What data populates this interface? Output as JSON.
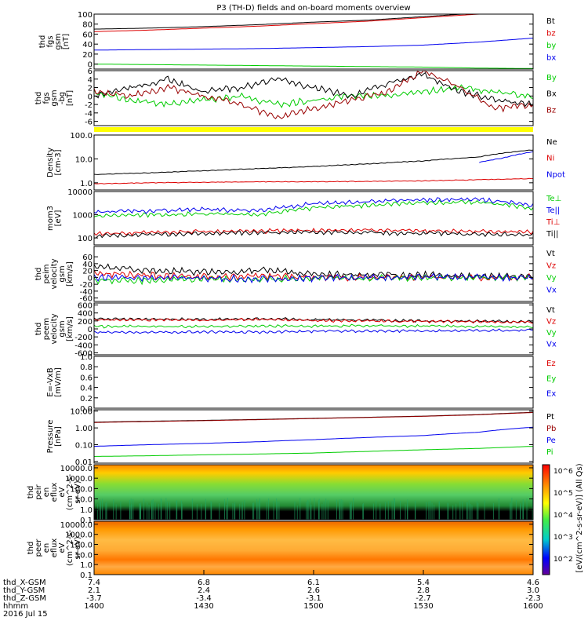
{
  "title": "P3 (TH-D) fields and on-board moments overview",
  "colors": {
    "black": "#000000",
    "red": "#dd0000",
    "green": "#00cc00",
    "blue": "#0000ee",
    "darkred": "#990000",
    "yellow": "#ffff00"
  },
  "chart_data": [
    {
      "id": "fgs",
      "type": "line",
      "ylabel": [
        "thd",
        "fgs",
        "gsm",
        "[nT]"
      ],
      "ylim": [
        -10,
        100
      ],
      "ticks": [
        "100",
        "80",
        "60",
        "40",
        "20",
        "0"
      ],
      "tickvals": [
        100,
        80,
        60,
        40,
        20,
        0
      ],
      "series": [
        {
          "name": "Bt",
          "color": "#000000",
          "x": [
            1400,
            1415,
            1430,
            1445,
            1500,
            1515,
            1530,
            1545,
            1600
          ],
          "values": [
            70,
            72,
            75,
            79,
            84,
            88,
            95,
            102,
            110
          ]
        },
        {
          "name": "bz",
          "color": "#dd0000",
          "x": [
            1400,
            1415,
            1430,
            1445,
            1500,
            1515,
            1530,
            1545,
            1600
          ],
          "values": [
            65,
            68,
            72,
            76,
            81,
            86,
            93,
            100,
            106
          ]
        },
        {
          "name": "by",
          "color": "#00cc00",
          "x": [
            1400,
            1415,
            1430,
            1445,
            1500,
            1515,
            1530,
            1545,
            1600
          ],
          "values": [
            0,
            -1,
            -2,
            -3,
            -4,
            -5,
            -6,
            -8,
            -9
          ]
        },
        {
          "name": "bx",
          "color": "#0000ee",
          "x": [
            1400,
            1415,
            1430,
            1445,
            1500,
            1515,
            1530,
            1545,
            1600
          ],
          "values": [
            28,
            29,
            30,
            31,
            33,
            35,
            38,
            44,
            52
          ]
        }
      ]
    },
    {
      "id": "fgs_dsl",
      "type": "line",
      "ylabel": [
        "thd",
        "fgs",
        "gsm",
        "-bg",
        "[nT]"
      ],
      "ylim": [
        -7,
        6
      ],
      "ticks": [
        "6",
        "4",
        "2",
        "0",
        "-2",
        "-4",
        "-6"
      ],
      "tickvals": [
        6,
        4,
        2,
        0,
        -2,
        -4,
        -6
      ],
      "series": [
        {
          "name": "By",
          "color": "#00cc00",
          "x": [
            1400,
            1410,
            1420,
            1430,
            1440,
            1450,
            1500,
            1510,
            1520,
            1530,
            1540,
            1550,
            1600
          ],
          "values": [
            1,
            -1,
            -2,
            -1,
            0,
            -2,
            -1,
            0,
            0,
            1,
            2,
            1,
            0
          ]
        },
        {
          "name": "Bx",
          "color": "#000000",
          "x": [
            1400,
            1410,
            1420,
            1430,
            1440,
            1450,
            1500,
            1510,
            1520,
            1530,
            1540,
            1550,
            1600
          ],
          "values": [
            0,
            2,
            4,
            1,
            2,
            4,
            2,
            0,
            3,
            5,
            1,
            -1,
            -2
          ]
        },
        {
          "name": "Bz",
          "color": "#990000",
          "x": [
            1400,
            1410,
            1420,
            1430,
            1440,
            1450,
            1500,
            1510,
            1520,
            1530,
            1540,
            1550,
            1600
          ],
          "values": [
            1,
            0,
            2,
            0,
            -2,
            -5,
            -3,
            -1,
            1,
            6,
            2,
            -3,
            -2
          ]
        }
      ]
    },
    {
      "id": "density",
      "type": "line",
      "log": true,
      "ylabel": [
        "Density",
        "[cm-3]"
      ],
      "ylim": [
        0.5,
        100
      ],
      "ticks": [
        "100.0",
        "10.0",
        "1.0"
      ],
      "tickvals": [
        100,
        10,
        1
      ],
      "series": [
        {
          "name": "Ne",
          "color": "#000000",
          "x": [
            1400,
            1415,
            1430,
            1445,
            1500,
            1515,
            1530,
            1545,
            1600
          ],
          "values": [
            2.2,
            2.6,
            3.2,
            3.9,
            4.8,
            6.2,
            8.2,
            12,
            24
          ]
        },
        {
          "name": "Ni",
          "color": "#dd0000",
          "x": [
            1400,
            1415,
            1430,
            1445,
            1500,
            1515,
            1530,
            1545,
            1600
          ],
          "values": [
            0.9,
            1.0,
            1.05,
            1.1,
            1.1,
            1.15,
            1.2,
            1.35,
            1.5
          ]
        },
        {
          "name": "Npot",
          "color": "#0000ee",
          "x": [
            1545,
            1552,
            1600
          ],
          "values": [
            7,
            11,
            20
          ]
        }
      ]
    },
    {
      "id": "temp",
      "type": "line",
      "log": true,
      "ylabel": [
        "mom3",
        "[eV]"
      ],
      "ylim": [
        50,
        10000
      ],
      "ticks": [
        "10000",
        "1000",
        "100"
      ],
      "tickvals": [
        10000,
        1000,
        100
      ],
      "series": [
        {
          "name": "Te⊥",
          "color": "#00cc00",
          "x": [
            1400,
            1415,
            1430,
            1445,
            1500,
            1515,
            1530,
            1545,
            1600
          ],
          "values": [
            900,
            1000,
            1100,
            1000,
            2000,
            2600,
            3400,
            3500,
            1900
          ]
        },
        {
          "name": "Te||",
          "color": "#0000ee",
          "x": [
            1400,
            1415,
            1430,
            1445,
            1500,
            1515,
            1530,
            1545,
            1600
          ],
          "values": [
            1300,
            1500,
            1700,
            1500,
            3000,
            3700,
            4500,
            4600,
            2600
          ]
        },
        {
          "name": "Ti⊥",
          "color": "#dd0000",
          "x": [
            1400,
            1415,
            1430,
            1445,
            1500,
            1515,
            1530,
            1545,
            1600
          ],
          "values": [
            150,
            170,
            190,
            200,
            210,
            220,
            200,
            190,
            180
          ]
        },
        {
          "name": "Ti||",
          "color": "#000000",
          "x": [
            1400,
            1415,
            1430,
            1445,
            1500,
            1515,
            1530,
            1545,
            1600
          ],
          "values": [
            120,
            140,
            160,
            170,
            180,
            170,
            160,
            150,
            140
          ]
        }
      ]
    },
    {
      "id": "vi",
      "type": "line",
      "ylabel": [
        "thd",
        "peim",
        "velocity",
        "gsm",
        "[km/s]"
      ],
      "ylim": [
        -70,
        90
      ],
      "ticks": [
        "60",
        "40",
        "20",
        "0",
        "-20",
        "-40",
        "-60"
      ],
      "tickvals": [
        60,
        40,
        20,
        0,
        -20,
        -40,
        -60
      ],
      "series": [
        {
          "name": "Vt",
          "color": "#000000",
          "x": [
            1400,
            1415,
            1430,
            1445,
            1500,
            1515,
            1530,
            1545,
            1600
          ],
          "values": [
            30,
            20,
            15,
            20,
            10,
            8,
            6,
            4,
            3
          ]
        },
        {
          "name": "Vz",
          "color": "#dd0000",
          "x": [
            1400,
            1415,
            1430,
            1445,
            1500,
            1515,
            1530,
            1545,
            1600
          ],
          "values": [
            10,
            5,
            2,
            5,
            0,
            0,
            0,
            0,
            0
          ]
        },
        {
          "name": "Vy",
          "color": "#00cc00",
          "x": [
            1400,
            1415,
            1430,
            1445,
            1500,
            1515,
            1530,
            1545,
            1600
          ],
          "values": [
            -10,
            -8,
            -6,
            -5,
            -3,
            -2,
            -1,
            -1,
            -1
          ]
        },
        {
          "name": "Vx",
          "color": "#0000ee",
          "x": [
            1400,
            1415,
            1430,
            1445,
            1500,
            1515,
            1530,
            1545,
            1600
          ],
          "values": [
            0,
            -2,
            -3,
            -5,
            -2,
            -1,
            0,
            0,
            0
          ]
        }
      ]
    },
    {
      "id": "ve",
      "type": "line",
      "ylabel": [
        "thd",
        "peem",
        "velocity",
        "gsm",
        "[km/s]"
      ],
      "ylim": [
        -650,
        650
      ],
      "ticks": [
        "600",
        "400",
        "200",
        "0",
        "-200",
        "-400",
        "-600"
      ],
      "tickvals": [
        600,
        400,
        200,
        0,
        -200,
        -400,
        -600
      ],
      "series": [
        {
          "name": "Vt",
          "color": "#000000",
          "x": [
            1400,
            1415,
            1430,
            1445,
            1500,
            1515,
            1530,
            1545,
            1600
          ],
          "values": [
            250,
            250,
            240,
            260,
            230,
            220,
            200,
            190,
            180
          ]
        },
        {
          "name": "Vz",
          "color": "#dd0000",
          "x": [
            1400,
            1415,
            1430,
            1445,
            1500,
            1515,
            1530,
            1545,
            1600
          ],
          "values": [
            230,
            230,
            220,
            240,
            210,
            200,
            190,
            180,
            170
          ]
        },
        {
          "name": "Vy",
          "color": "#00cc00",
          "x": [
            1400,
            1415,
            1430,
            1445,
            1500,
            1515,
            1530,
            1545,
            1600
          ],
          "values": [
            60,
            60,
            60,
            70,
            70,
            80,
            70,
            60,
            50
          ]
        },
        {
          "name": "Vx",
          "color": "#0000ee",
          "x": [
            1400,
            1415,
            1430,
            1445,
            1500,
            1515,
            1530,
            1545,
            1600
          ],
          "values": [
            -80,
            -90,
            -70,
            -80,
            -60,
            -50,
            -50,
            -40,
            -30
          ]
        }
      ]
    },
    {
      "id": "efield",
      "type": "line",
      "ylabel": [
        "E=-VxB",
        "[mV/m]"
      ],
      "ylim": [
        0,
        1
      ],
      "ticks": [
        "1.0",
        "0.8",
        "0.6",
        "0.4",
        "0.2",
        "0.0"
      ],
      "tickvals": [
        1,
        0.8,
        0.6,
        0.4,
        0.2,
        0
      ],
      "series": [
        {
          "name": "Ez",
          "color": "#dd0000",
          "x": [],
          "values": []
        },
        {
          "name": "Ey",
          "color": "#00cc00",
          "x": [],
          "values": []
        },
        {
          "name": "Ex",
          "color": "#0000ee",
          "x": [],
          "values": []
        }
      ]
    },
    {
      "id": "pressure",
      "type": "line",
      "log": true,
      "ylabel": [
        "Pressure",
        "[nPa]"
      ],
      "ylim": [
        0.008,
        12
      ],
      "ticks": [
        "10.00",
        "1.00",
        "0.10",
        "0.01"
      ],
      "tickvals": [
        10,
        1,
        0.1,
        0.01
      ],
      "series": [
        {
          "name": "Pt",
          "color": "#000000",
          "x": [
            1400,
            1415,
            1430,
            1445,
            1500,
            1515,
            1530,
            1545,
            1600
          ],
          "values": [
            2.2,
            2.5,
            2.8,
            3.2,
            3.7,
            4.3,
            5.0,
            6.2,
            8.5
          ]
        },
        {
          "name": "Pb",
          "color": "#990000",
          "x": [
            1400,
            1415,
            1430,
            1445,
            1500,
            1515,
            1530,
            1545,
            1600
          ],
          "values": [
            2.1,
            2.4,
            2.7,
            3.1,
            3.6,
            4.2,
            4.9,
            6.0,
            8.2
          ]
        },
        {
          "name": "Pe",
          "color": "#0000ee",
          "x": [
            1400,
            1415,
            1430,
            1445,
            1500,
            1515,
            1530,
            1545,
            1600
          ],
          "values": [
            0.08,
            0.1,
            0.12,
            0.15,
            0.2,
            0.27,
            0.35,
            0.55,
            1.1
          ]
        },
        {
          "name": "Pi",
          "color": "#00cc00",
          "x": [
            1400,
            1415,
            1430,
            1445,
            1500,
            1515,
            1530,
            1545,
            1600
          ],
          "values": [
            0.02,
            0.022,
            0.025,
            0.028,
            0.032,
            0.04,
            0.05,
            0.06,
            0.08
          ]
        }
      ]
    },
    {
      "id": "ion_spec",
      "type": "heatmap",
      "ylabel": [
        "thd",
        "peir",
        "en",
        "eflux",
        "eV",
        "(cm^2-s-",
        "sr-eV)"
      ],
      "ticks": [
        "10000.0",
        "1000.0",
        "100.0",
        "10.0",
        "1.0",
        "0.1"
      ],
      "tickvals": [
        10000,
        1000,
        100,
        10,
        1,
        0.1
      ]
    },
    {
      "id": "ele_spec",
      "type": "heatmap",
      "ylabel": [
        "thd",
        "peer",
        "en",
        "eflux",
        "eV",
        "(cm^2-s-",
        "sr-eV)"
      ],
      "ticks": [
        "10000.0",
        "1000.0",
        "100.0",
        "10.0",
        "1.0",
        "0.1"
      ],
      "tickvals": [
        10000,
        1000,
        100,
        10,
        1,
        0.1
      ]
    }
  ],
  "colorbar": {
    "ticks": [
      "10^6",
      "10^5",
      "10^4",
      "10^3",
      "10^2"
    ],
    "tickvals": [
      6,
      5,
      4,
      3,
      2
    ],
    "label": "[eV/(cm^2-s-sr-eV)] (All Qs)"
  },
  "xaxis": {
    "ticks": [
      "1400",
      "1430",
      "1500",
      "1530",
      "1600"
    ],
    "tickvals": [
      1400,
      1430,
      1500,
      1530,
      1600
    ],
    "rows": [
      {
        "label": "thd_X-GSM",
        "values": [
          "7.4",
          "6.8",
          "6.1",
          "5.4",
          "4.6"
        ]
      },
      {
        "label": "thd_Y-GSM",
        "values": [
          "2.1",
          "2.4",
          "2.6",
          "2.8",
          "3.0"
        ]
      },
      {
        "label": "thd_Z-GSM",
        "values": [
          "-3.7",
          "-3.4",
          "-3.1",
          "-2.7",
          "-2.3"
        ]
      },
      {
        "label": "hhmm",
        "values": [
          "1400",
          "1430",
          "1500",
          "1530",
          "1600"
        ]
      }
    ],
    "date": "2016 Jul 15"
  }
}
